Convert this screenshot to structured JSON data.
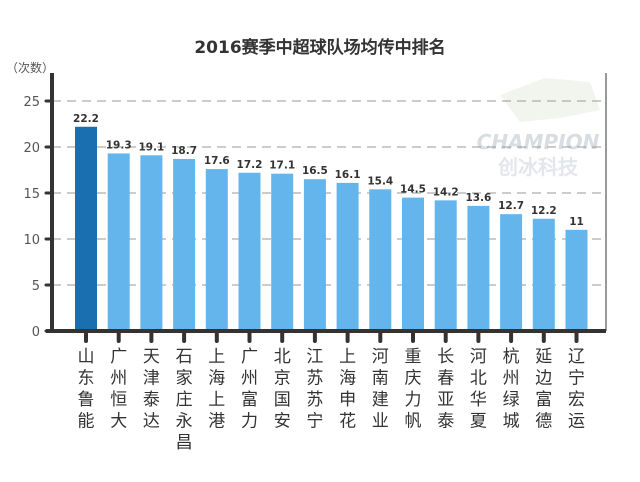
{
  "chart_data": {
    "type": "bar",
    "title": "2016赛季中超球队场均传中排名",
    "ylabel": "（次数）",
    "xlabel": "",
    "ylim": [
      0,
      25
    ],
    "yticks": [
      0,
      5,
      10,
      15,
      20,
      25
    ],
    "grid": true,
    "categories": [
      "山东鲁能",
      "广州恒大",
      "天津泰达",
      "石家庄永昌",
      "上海上港",
      "广州富力",
      "北京国安",
      "江苏苏宁",
      "上海申花",
      "河南建业",
      "重庆力帆",
      "长春亚泰",
      "河北华夏",
      "杭州绿城",
      "延边富德",
      "辽宁宏运"
    ],
    "values": [
      22.2,
      19.3,
      19.1,
      18.7,
      17.6,
      17.2,
      17.1,
      16.5,
      16.1,
      15.4,
      14.5,
      14.2,
      13.6,
      12.7,
      12.2,
      11
    ],
    "data_labels": [
      "22.2",
      "19.3",
      "19.1",
      "18.7",
      "17.6",
      "17.2",
      "17.1",
      "16.5",
      "16.1",
      "15.4",
      "14.5",
      "14.2",
      "13.6",
      "12.7",
      "12.2",
      "11"
    ],
    "colors": {
      "highlight": "#1a6fb0",
      "bar": "#64b5ec",
      "axis": "#333333",
      "grid": "#999999"
    }
  },
  "watermark": {
    "line1": "CHAMPION",
    "line2": "创冰科技"
  }
}
